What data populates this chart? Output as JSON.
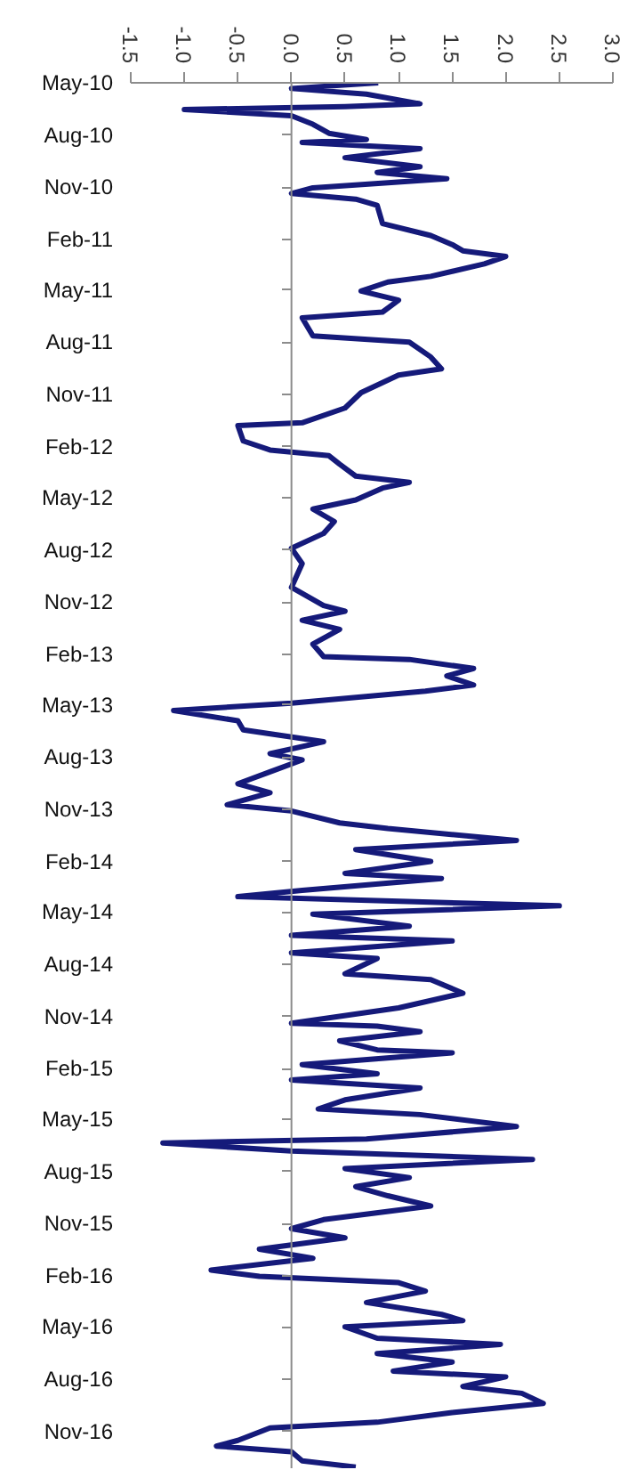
{
  "chart_data": {
    "type": "line",
    "orientation": "horizontal",
    "color": "#151a7a",
    "grid": false,
    "marker": "none",
    "line_style": "solid",
    "x": [
      "2010-05-01",
      "2010-05-11",
      "2010-05-21",
      "2010-06-07",
      "2010-06-12",
      "2010-06-17",
      "2010-06-28",
      "2010-07-13",
      "2010-07-29",
      "2010-08-09",
      "2010-08-14",
      "2010-08-25",
      "2010-09-10",
      "2010-09-26",
      "2010-10-06",
      "2010-10-17",
      "2010-11-02",
      "2010-11-12",
      "2010-11-22",
      "2010-12-03",
      "2011-01-04",
      "2011-01-25",
      "2011-02-10",
      "2011-02-21",
      "2011-03-03",
      "2011-03-16",
      "2011-04-07",
      "2011-04-17",
      "2011-05-03",
      "2011-05-19",
      "2011-06-09",
      "2011-06-19",
      "2011-07-21",
      "2011-08-01",
      "2011-08-27",
      "2011-09-17",
      "2011-09-28",
      "2011-10-29",
      "2011-11-25",
      "2011-12-21",
      "2011-12-26",
      "2012-01-22",
      "2012-02-07",
      "2012-02-17",
      "2012-03-03",
      "2012-03-24",
      "2012-04-04",
      "2012-04-14",
      "2012-05-05",
      "2012-05-21",
      "2012-06-12",
      "2012-07-03",
      "2012-07-29",
      "2012-08-25",
      "2012-10-06",
      "2012-11-07",
      "2012-11-17",
      "2012-12-03",
      "2012-12-19",
      "2013-01-14",
      "2013-02-05",
      "2013-02-10",
      "2013-02-26",
      "2013-03-11",
      "2013-03-27",
      "2013-04-07",
      "2013-04-28",
      "2013-05-11",
      "2013-05-29",
      "2013-06-14",
      "2013-07-05",
      "2013-07-26",
      "2013-08-06",
      "2013-08-27",
      "2013-09-17",
      "2013-10-03",
      "2013-10-24",
      "2013-11-04",
      "2013-11-25",
      "2013-12-05",
      "2013-12-26",
      "2014-01-11",
      "2014-02-01",
      "2014-02-22",
      "2014-03-03",
      "2014-03-24",
      "2014-04-04",
      "2014-04-20",
      "2014-05-05",
      "2014-05-26",
      "2014-06-11",
      "2014-06-21",
      "2014-07-12",
      "2014-07-22",
      "2014-08-18",
      "2014-08-28",
      "2014-09-21",
      "2014-10-17",
      "2014-11-13",
      "2014-11-18",
      "2014-11-28",
      "2014-12-14",
      "2014-12-30",
      "2015-01-04",
      "2015-01-25",
      "2015-02-10",
      "2015-02-21",
      "2015-03-07",
      "2015-03-28",
      "2015-04-13",
      "2015-04-23",
      "2015-05-14",
      "2015-06-05",
      "2015-06-12",
      "2015-06-26",
      "2015-07-11",
      "2015-07-27",
      "2015-08-12",
      "2015-08-28",
      "2015-09-13",
      "2015-10-01",
      "2015-10-25",
      "2015-11-10",
      "2015-11-26",
      "2015-12-16",
      "2016-01-01",
      "2016-01-22",
      "2016-02-02",
      "2016-02-13",
      "2016-02-28",
      "2016-03-19",
      "2016-04-09",
      "2016-04-20",
      "2016-05-01",
      "2016-05-21",
      "2016-06-01",
      "2016-06-17",
      "2016-07-02",
      "2016-07-18",
      "2016-07-28",
      "2016-08-14",
      "2016-08-26",
      "2016-09-13",
      "2016-09-29",
      "2016-10-16",
      "2016-10-26",
      "2016-11-17",
      "2016-11-27",
      "2016-12-07",
      "2016-12-23",
      "2017-01-03"
    ],
    "values": [
      0.81,
      0.0,
      0.7,
      1.2,
      0.5,
      -1.0,
      0.0,
      0.2,
      0.35,
      0.7,
      0.1,
      1.2,
      0.5,
      1.2,
      0.8,
      1.45,
      0.2,
      0.0,
      0.6,
      0.8,
      0.85,
      1.3,
      1.5,
      1.6,
      2.0,
      1.8,
      1.3,
      0.9,
      0.65,
      1.0,
      0.85,
      0.1,
      0.2,
      1.1,
      1.3,
      1.4,
      1.0,
      0.65,
      0.5,
      0.1,
      -0.5,
      -0.45,
      -0.2,
      0.35,
      0.45,
      0.6,
      1.1,
      0.85,
      0.6,
      0.2,
      0.4,
      0.3,
      0.0,
      0.1,
      0.0,
      0.3,
      0.5,
      0.1,
      0.45,
      0.2,
      0.3,
      1.1,
      1.7,
      1.45,
      1.7,
      1.25,
      0.0,
      -1.1,
      -0.5,
      -0.45,
      0.3,
      -0.2,
      0.1,
      -0.2,
      -0.5,
      -0.2,
      -0.6,
      0.0,
      0.45,
      0.9,
      2.1,
      0.6,
      1.3,
      0.5,
      1.4,
      0.1,
      -0.5,
      2.5,
      0.2,
      1.1,
      0.0,
      1.5,
      0.0,
      0.8,
      0.5,
      1.3,
      1.6,
      1.0,
      0.0,
      0.8,
      1.2,
      0.45,
      0.8,
      1.5,
      0.1,
      0.8,
      0.0,
      1.2,
      0.5,
      0.25,
      1.2,
      2.1,
      0.7,
      -1.2,
      0.0,
      2.25,
      0.5,
      1.1,
      0.6,
      0.9,
      1.3,
      0.3,
      0.0,
      0.5,
      -0.3,
      0.2,
      -0.75,
      -0.3,
      1.0,
      1.25,
      0.7,
      1.4,
      1.6,
      0.5,
      0.8,
      1.95,
      0.8,
      1.5,
      0.95,
      2.0,
      1.6,
      2.15,
      2.35,
      1.5,
      0.8,
      -0.2,
      -0.5,
      -0.7,
      0.0,
      0.1,
      0.6
    ],
    "ylim": [
      "2017-01-05",
      "2010-05-01"
    ],
    "yticks": [
      {
        "value": "2010-05-01",
        "label": "May-10"
      },
      {
        "value": "2010-08-01",
        "label": "Aug-10"
      },
      {
        "value": "2010-11-01",
        "label": "Nov-10"
      },
      {
        "value": "2011-02-01",
        "label": "Feb-11"
      },
      {
        "value": "2011-05-01",
        "label": "May-11"
      },
      {
        "value": "2011-08-01",
        "label": "Aug-11"
      },
      {
        "value": "2011-11-01",
        "label": "Nov-11"
      },
      {
        "value": "2012-02-01",
        "label": "Feb-12"
      },
      {
        "value": "2012-05-01",
        "label": "May-12"
      },
      {
        "value": "2012-08-01",
        "label": "Aug-12"
      },
      {
        "value": "2012-11-01",
        "label": "Nov-12"
      },
      {
        "value": "2013-02-01",
        "label": "Feb-13"
      },
      {
        "value": "2013-05-01",
        "label": "May-13"
      },
      {
        "value": "2013-08-01",
        "label": "Aug-13"
      },
      {
        "value": "2013-11-01",
        "label": "Nov-13"
      },
      {
        "value": "2014-02-01",
        "label": "Feb-14"
      },
      {
        "value": "2014-05-01",
        "label": "May-14"
      },
      {
        "value": "2014-08-01",
        "label": "Aug-14"
      },
      {
        "value": "2014-11-01",
        "label": "Nov-14"
      },
      {
        "value": "2015-02-01",
        "label": "Feb-15"
      },
      {
        "value": "2015-05-01",
        "label": "May-15"
      },
      {
        "value": "2015-08-01",
        "label": "Aug-15"
      },
      {
        "value": "2015-11-01",
        "label": "Nov-15"
      },
      {
        "value": "2016-02-01",
        "label": "Feb-16"
      },
      {
        "value": "2016-05-01",
        "label": "May-16"
      },
      {
        "value": "2016-08-01",
        "label": "Aug-16"
      },
      {
        "value": "2016-11-01",
        "label": "Nov-16"
      }
    ],
    "ref_lines": [
      {
        "axis": "x",
        "value": 0.0,
        "color": "#8c8c8c"
      }
    ],
    "xlim": [
      -1.5,
      3.0
    ],
    "xticks": [
      {
        "value": -1.5,
        "label": "-1.5"
      },
      {
        "value": -1.0,
        "label": "-1.0"
      },
      {
        "value": -0.5,
        "label": "-0.5"
      },
      {
        "value": 0.0,
        "label": "0.0"
      },
      {
        "value": 0.5,
        "label": "0.5"
      },
      {
        "value": 1.0,
        "label": "1.0"
      },
      {
        "value": 1.5,
        "label": "1.5"
      },
      {
        "value": 2.0,
        "label": "2.0"
      },
      {
        "value": 2.5,
        "label": "2.5"
      },
      {
        "value": 3.0,
        "label": "3.0"
      }
    ]
  }
}
